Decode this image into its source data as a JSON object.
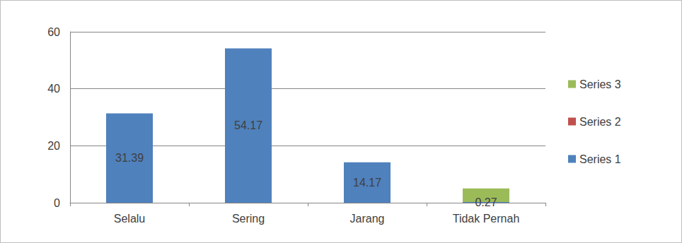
{
  "chart_data": {
    "type": "bar",
    "categories": [
      "Selalu",
      "Sering",
      "Jarang",
      "Tidak Pernah"
    ],
    "series": [
      {
        "name": "Series 1",
        "color": "#4f81bd",
        "values": [
          31.39,
          54.17,
          14.17,
          0.27
        ],
        "data_labels": true
      },
      {
        "name": "Series 2",
        "color": "#c0504d",
        "values": [
          null,
          null,
          null,
          null
        ]
      },
      {
        "name": "Series 3",
        "color": "#9bbb59",
        "values": [
          null,
          null,
          null,
          5
        ]
      }
    ],
    "ylim": [
      0,
      60
    ],
    "yticks": [
      0,
      20,
      40,
      60
    ],
    "grid": true,
    "legend": "right"
  }
}
